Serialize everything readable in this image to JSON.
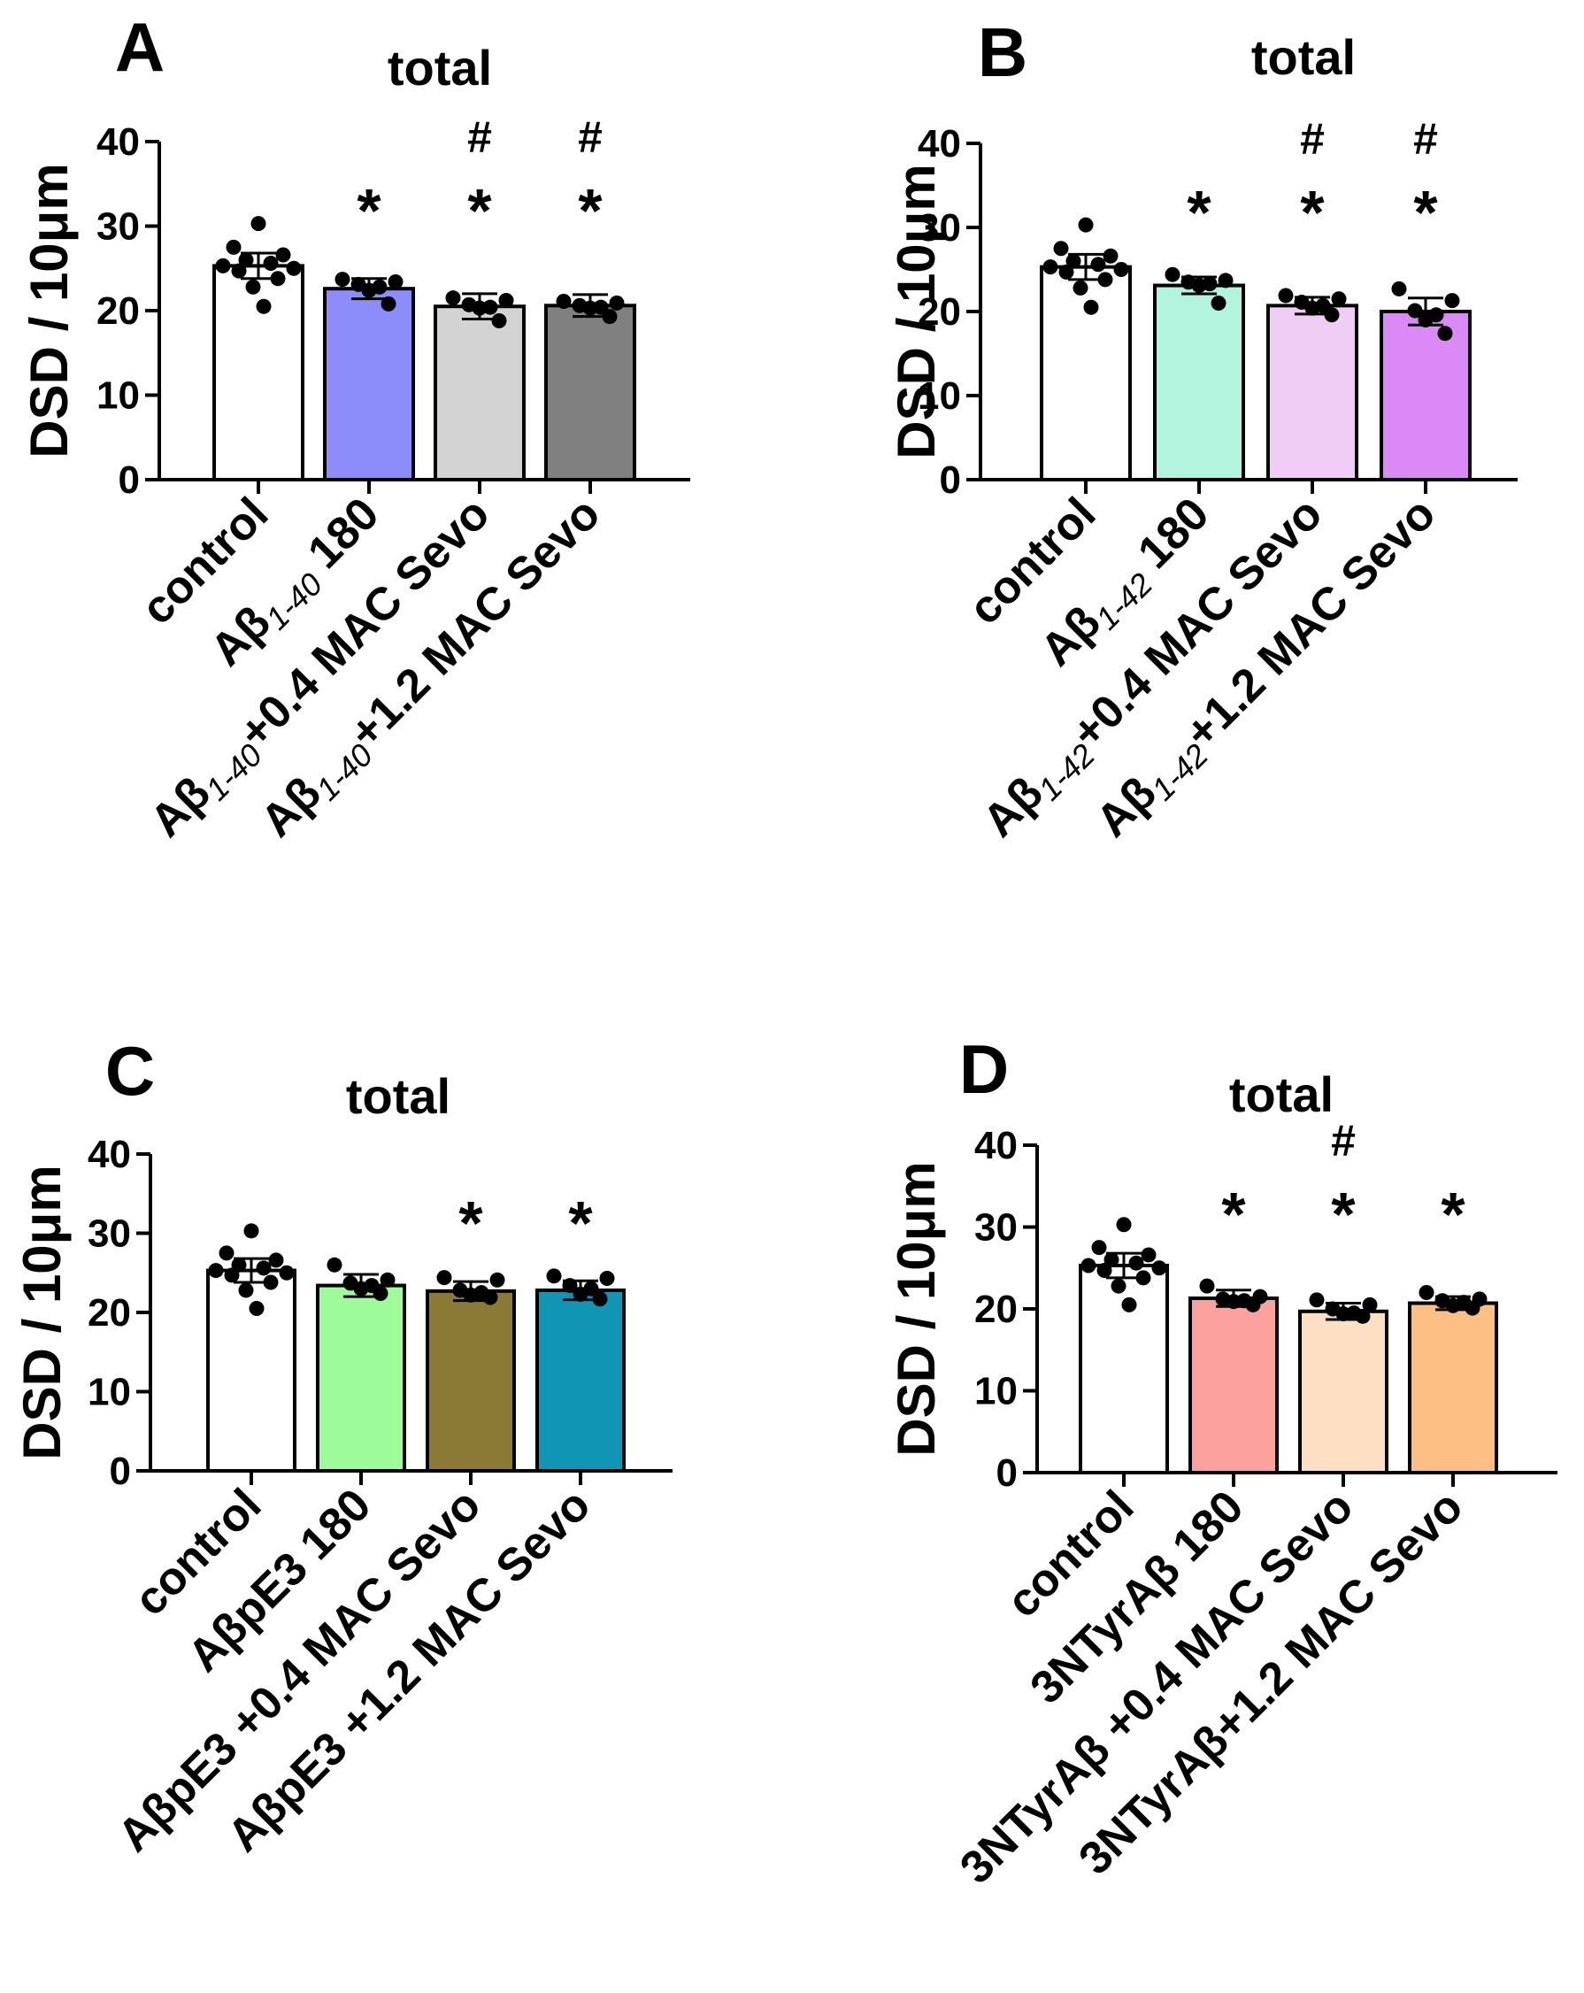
{
  "figure": {
    "panel_count": 4
  },
  "chart_data": [
    {
      "panel": "A",
      "type": "bar",
      "title": "total",
      "ylabel": "DSD / 10μm",
      "ylim": [
        0,
        40
      ],
      "yticks": [
        0,
        10,
        20,
        30,
        40
      ],
      "categories": [
        {
          "parts": [
            {
              "t": "control"
            }
          ]
        },
        {
          "parts": [
            {
              "t": "Aβ"
            },
            {
              "t": "1-40",
              "sub": true
            },
            {
              "t": " 180"
            }
          ]
        },
        {
          "parts": [
            {
              "t": "Aβ"
            },
            {
              "t": "1-40",
              "sub": true
            },
            {
              "t": "+0.4 MAC Sevo"
            }
          ]
        },
        {
          "parts": [
            {
              "t": "Aβ"
            },
            {
              "t": "1-40",
              "sub": true
            },
            {
              "t": "+1.2 MAC Sevo"
            }
          ]
        }
      ],
      "values": [
        25.3,
        22.6,
        20.5,
        20.6
      ],
      "errors": [
        1.5,
        1.2,
        1.5,
        1.3
      ],
      "colors": [
        "#ffffff",
        "#8c8cfb",
        "#d3d3d3",
        "#808080"
      ],
      "points": [
        [
          30.3,
          27.5,
          26.6,
          26.0,
          25.6,
          25.3,
          25.0,
          24.7,
          23.8,
          22.8,
          20.5
        ],
        [
          23.7,
          23.4,
          23.1,
          22.8,
          22.4,
          20.8
        ],
        [
          21.5,
          21.2,
          20.7,
          20.4,
          20.3,
          18.8
        ],
        [
          21.1,
          20.9,
          20.6,
          20.4,
          20.3,
          19.3
        ]
      ],
      "annotations": [
        {
          "category": 1,
          "marks": [
            "*"
          ]
        },
        {
          "category": 2,
          "marks": [
            "*",
            "#"
          ]
        },
        {
          "category": 3,
          "marks": [
            "*",
            "#"
          ]
        }
      ]
    },
    {
      "panel": "B",
      "type": "bar",
      "title": "total",
      "ylabel": "DSD / 10μm",
      "ylim": [
        0,
        40
      ],
      "yticks": [
        0,
        10,
        20,
        30,
        40
      ],
      "categories": [
        {
          "parts": [
            {
              "t": "control"
            }
          ]
        },
        {
          "parts": [
            {
              "t": "Aβ"
            },
            {
              "t": "1-42",
              "sub": true
            },
            {
              "t": " 180"
            }
          ]
        },
        {
          "parts": [
            {
              "t": "Aβ"
            },
            {
              "t": "1-42",
              "sub": true
            },
            {
              "t": "+0.4 MAC Sevo"
            }
          ]
        },
        {
          "parts": [
            {
              "t": "Aβ"
            },
            {
              "t": "1-42",
              "sub": true
            },
            {
              "t": "+1.2 MAC Sevo"
            }
          ]
        }
      ],
      "values": [
        25.3,
        23.1,
        20.7,
        20.0
      ],
      "errors": [
        1.5,
        1.0,
        1.0,
        1.6
      ],
      "colors": [
        "#ffffff",
        "#b2f5df",
        "#f0cdf5",
        "#d98af5"
      ],
      "points": [
        [
          30.3,
          27.5,
          26.6,
          26.0,
          25.6,
          25.3,
          25.0,
          24.7,
          23.8,
          22.8,
          20.5
        ],
        [
          24.4,
          23.7,
          23.5,
          23.3,
          23.1,
          21.0
        ],
        [
          21.9,
          21.5,
          21.1,
          20.7,
          20.4,
          19.6
        ],
        [
          22.7,
          21.3,
          20.1,
          19.6,
          19.0,
          17.4
        ]
      ],
      "annotations": [
        {
          "category": 1,
          "marks": [
            "*"
          ]
        },
        {
          "category": 2,
          "marks": [
            "*",
            "#"
          ]
        },
        {
          "category": 3,
          "marks": [
            "*",
            "#"
          ]
        }
      ]
    },
    {
      "panel": "C",
      "type": "bar",
      "title": "total",
      "ylabel": "DSD / 10μm",
      "ylim": [
        0,
        40
      ],
      "yticks": [
        0,
        10,
        20,
        30,
        40
      ],
      "categories": [
        {
          "parts": [
            {
              "t": "control"
            }
          ]
        },
        {
          "parts": [
            {
              "t": "AβpE3 180"
            }
          ]
        },
        {
          "parts": [
            {
              "t": "AβpE3 +0.4 MAC Sevo"
            }
          ]
        },
        {
          "parts": [
            {
              "t": "AβpE3 +1.2 MAC Sevo"
            }
          ]
        }
      ],
      "values": [
        25.3,
        23.4,
        22.7,
        22.8
      ],
      "errors": [
        1.5,
        1.4,
        1.2,
        1.2
      ],
      "colors": [
        "#ffffff",
        "#9efb9a",
        "#8b7a36",
        "#1195b4"
      ],
      "points": [
        [
          30.3,
          27.5,
          26.6,
          26.0,
          25.6,
          25.3,
          25.0,
          24.7,
          23.8,
          22.8,
          20.5
        ],
        [
          26.0,
          24.1,
          23.7,
          23.4,
          23.0,
          22.4
        ],
        [
          24.4,
          24.1,
          22.8,
          22.5,
          22.2,
          21.9
        ],
        [
          24.6,
          24.3,
          23.4,
          23.0,
          22.3,
          21.7
        ]
      ],
      "annotations": [
        {
          "category": 2,
          "marks": [
            "*"
          ]
        },
        {
          "category": 3,
          "marks": [
            "*"
          ]
        }
      ]
    },
    {
      "panel": "D",
      "type": "bar",
      "title": "total",
      "ylabel": "DSD / 10μm",
      "ylim": [
        0,
        40
      ],
      "yticks": [
        0,
        10,
        20,
        30,
        40
      ],
      "categories": [
        {
          "parts": [
            {
              "t": "control"
            }
          ]
        },
        {
          "parts": [
            {
              "t": "3NTyrAβ 180"
            }
          ]
        },
        {
          "parts": [
            {
              "t": "3NTyrAβ +0.4 MAC Sevo"
            }
          ]
        },
        {
          "parts": [
            {
              "t": "3NTyrAβ+1.2 MAC Sevo"
            }
          ]
        }
      ],
      "values": [
        25.3,
        21.3,
        19.7,
        20.7
      ],
      "errors": [
        1.5,
        1.0,
        1.0,
        0.8
      ],
      "colors": [
        "#ffffff",
        "#fca19d",
        "#fde0c3",
        "#fdbf82"
      ],
      "points": [
        [
          30.3,
          27.5,
          26.6,
          26.0,
          25.6,
          25.3,
          25.0,
          24.7,
          23.8,
          22.8,
          20.5
        ],
        [
          22.8,
          21.5,
          21.2,
          21.0,
          20.9,
          20.5
        ],
        [
          21.1,
          20.5,
          20.0,
          19.5,
          19.4,
          19.1
        ],
        [
          22.0,
          21.2,
          21.0,
          20.8,
          20.4,
          20.1
        ]
      ],
      "annotations": [
        {
          "category": 1,
          "marks": [
            "*"
          ]
        },
        {
          "category": 2,
          "marks": [
            "*",
            "#"
          ]
        },
        {
          "category": 3,
          "marks": [
            "*"
          ]
        }
      ]
    }
  ]
}
